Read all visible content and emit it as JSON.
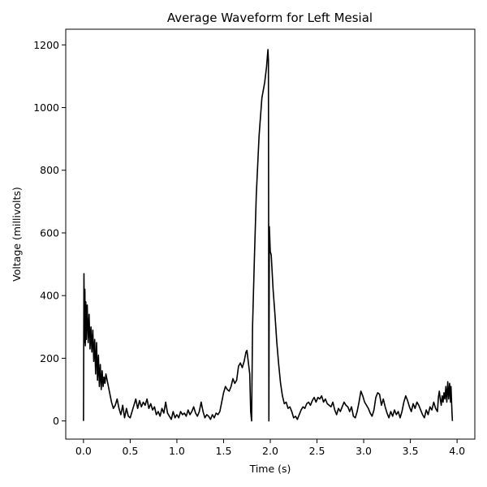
{
  "chart_data": {
    "type": "line",
    "title": "Average Waveform for Left Mesial",
    "xlabel": "Time (s)",
    "ylabel": "Voltage (millivolts)",
    "xlim": [
      -0.19,
      4.19
    ],
    "ylim": [
      -58,
      1250
    ],
    "xticks": [
      0.0,
      0.5,
      1.0,
      1.5,
      2.0,
      2.5,
      3.0,
      3.5,
      4.0
    ],
    "xtick_labels": [
      "0.0",
      "0.5",
      "1.0",
      "1.5",
      "2.0",
      "2.5",
      "3.0",
      "3.5",
      "4.0"
    ],
    "yticks": [
      0,
      200,
      400,
      600,
      800,
      1000,
      1200
    ],
    "ytick_labels": [
      "0",
      "200",
      "400",
      "600",
      "800",
      "1000",
      "1200"
    ],
    "grid": false,
    "line_color": "#000000",
    "series": [
      {
        "points": [
          [
            0.0,
            0
          ],
          [
            0.005,
            470
          ],
          [
            0.01,
            250
          ],
          [
            0.015,
            420
          ],
          [
            0.02,
            240
          ],
          [
            0.025,
            380
          ],
          [
            0.03,
            260
          ],
          [
            0.04,
            370
          ],
          [
            0.05,
            250
          ],
          [
            0.06,
            340
          ],
          [
            0.07,
            230
          ],
          [
            0.08,
            300
          ],
          [
            0.09,
            220
          ],
          [
            0.1,
            290
          ],
          [
            0.11,
            190
          ],
          [
            0.12,
            260
          ],
          [
            0.13,
            150
          ],
          [
            0.14,
            250
          ],
          [
            0.15,
            130
          ],
          [
            0.16,
            210
          ],
          [
            0.17,
            110
          ],
          [
            0.18,
            180
          ],
          [
            0.19,
            100
          ],
          [
            0.2,
            160
          ],
          [
            0.21,
            110
          ],
          [
            0.22,
            140
          ],
          [
            0.23,
            120
          ],
          [
            0.24,
            150
          ],
          [
            0.26,
            120
          ],
          [
            0.28,
            90
          ],
          [
            0.3,
            60
          ],
          [
            0.32,
            40
          ],
          [
            0.34,
            50
          ],
          [
            0.36,
            70
          ],
          [
            0.38,
            40
          ],
          [
            0.4,
            20
          ],
          [
            0.42,
            50
          ],
          [
            0.44,
            10
          ],
          [
            0.46,
            40
          ],
          [
            0.48,
            15
          ],
          [
            0.5,
            10
          ],
          [
            0.52,
            30
          ],
          [
            0.54,
            50
          ],
          [
            0.56,
            70
          ],
          [
            0.58,
            40
          ],
          [
            0.6,
            65
          ],
          [
            0.62,
            45
          ],
          [
            0.64,
            60
          ],
          [
            0.66,
            50
          ],
          [
            0.68,
            70
          ],
          [
            0.7,
            40
          ],
          [
            0.72,
            55
          ],
          [
            0.74,
            35
          ],
          [
            0.76,
            45
          ],
          [
            0.78,
            20
          ],
          [
            0.8,
            30
          ],
          [
            0.82,
            15
          ],
          [
            0.84,
            40
          ],
          [
            0.86,
            25
          ],
          [
            0.88,
            60
          ],
          [
            0.9,
            25
          ],
          [
            0.92,
            15
          ],
          [
            0.94,
            5
          ],
          [
            0.96,
            30
          ],
          [
            0.98,
            10
          ],
          [
            1.0,
            20
          ],
          [
            1.02,
            10
          ],
          [
            1.04,
            30
          ],
          [
            1.06,
            20
          ],
          [
            1.08,
            25
          ],
          [
            1.1,
            15
          ],
          [
            1.12,
            35
          ],
          [
            1.14,
            20
          ],
          [
            1.16,
            30
          ],
          [
            1.18,
            45
          ],
          [
            1.2,
            25
          ],
          [
            1.22,
            15
          ],
          [
            1.24,
            30
          ],
          [
            1.26,
            60
          ],
          [
            1.28,
            30
          ],
          [
            1.3,
            10
          ],
          [
            1.32,
            20
          ],
          [
            1.34,
            15
          ],
          [
            1.36,
            5
          ],
          [
            1.38,
            20
          ],
          [
            1.4,
            10
          ],
          [
            1.42,
            25
          ],
          [
            1.44,
            20
          ],
          [
            1.46,
            30
          ],
          [
            1.48,
            60
          ],
          [
            1.5,
            90
          ],
          [
            1.52,
            110
          ],
          [
            1.54,
            100
          ],
          [
            1.56,
            95
          ],
          [
            1.58,
            110
          ],
          [
            1.6,
            135
          ],
          [
            1.62,
            120
          ],
          [
            1.64,
            130
          ],
          [
            1.66,
            175
          ],
          [
            1.68,
            185
          ],
          [
            1.7,
            170
          ],
          [
            1.72,
            190
          ],
          [
            1.74,
            220
          ],
          [
            1.75,
            225
          ],
          [
            1.76,
            200
          ],
          [
            1.78,
            150
          ],
          [
            1.79,
            30
          ],
          [
            1.8,
            0
          ],
          [
            1.81,
            300
          ],
          [
            1.83,
            520
          ],
          [
            1.85,
            720
          ],
          [
            1.88,
            910
          ],
          [
            1.91,
            1030
          ],
          [
            1.94,
            1080
          ],
          [
            1.96,
            1130
          ],
          [
            1.975,
            1185
          ],
          [
            1.98,
            1150
          ],
          [
            1.985,
            0
          ],
          [
            1.99,
            620
          ],
          [
            2.0,
            540
          ],
          [
            2.01,
            530
          ],
          [
            2.03,
            420
          ],
          [
            2.05,
            340
          ],
          [
            2.07,
            250
          ],
          [
            2.09,
            180
          ],
          [
            2.11,
            120
          ],
          [
            2.13,
            80
          ],
          [
            2.15,
            55
          ],
          [
            2.17,
            60
          ],
          [
            2.19,
            40
          ],
          [
            2.21,
            45
          ],
          [
            2.23,
            30
          ],
          [
            2.25,
            10
          ],
          [
            2.27,
            15
          ],
          [
            2.29,
            5
          ],
          [
            2.31,
            20
          ],
          [
            2.33,
            35
          ],
          [
            2.35,
            45
          ],
          [
            2.37,
            40
          ],
          [
            2.39,
            55
          ],
          [
            2.41,
            60
          ],
          [
            2.43,
            50
          ],
          [
            2.45,
            65
          ],
          [
            2.47,
            75
          ],
          [
            2.49,
            60
          ],
          [
            2.51,
            75
          ],
          [
            2.53,
            70
          ],
          [
            2.55,
            80
          ],
          [
            2.57,
            60
          ],
          [
            2.59,
            70
          ],
          [
            2.61,
            55
          ],
          [
            2.63,
            50
          ],
          [
            2.65,
            45
          ],
          [
            2.67,
            60
          ],
          [
            2.69,
            35
          ],
          [
            2.71,
            20
          ],
          [
            2.73,
            40
          ],
          [
            2.75,
            30
          ],
          [
            2.77,
            45
          ],
          [
            2.79,
            60
          ],
          [
            2.81,
            50
          ],
          [
            2.83,
            45
          ],
          [
            2.85,
            30
          ],
          [
            2.87,
            45
          ],
          [
            2.89,
            15
          ],
          [
            2.91,
            10
          ],
          [
            2.93,
            30
          ],
          [
            2.95,
            60
          ],
          [
            2.97,
            95
          ],
          [
            2.99,
            80
          ],
          [
            3.01,
            60
          ],
          [
            3.03,
            50
          ],
          [
            3.05,
            40
          ],
          [
            3.07,
            25
          ],
          [
            3.09,
            15
          ],
          [
            3.11,
            35
          ],
          [
            3.13,
            75
          ],
          [
            3.15,
            90
          ],
          [
            3.17,
            85
          ],
          [
            3.19,
            50
          ],
          [
            3.21,
            70
          ],
          [
            3.23,
            45
          ],
          [
            3.25,
            25
          ],
          [
            3.27,
            10
          ],
          [
            3.29,
            30
          ],
          [
            3.31,
            15
          ],
          [
            3.33,
            35
          ],
          [
            3.35,
            20
          ],
          [
            3.37,
            30
          ],
          [
            3.39,
            10
          ],
          [
            3.41,
            30
          ],
          [
            3.43,
            60
          ],
          [
            3.45,
            80
          ],
          [
            3.47,
            65
          ],
          [
            3.49,
            45
          ],
          [
            3.51,
            30
          ],
          [
            3.53,
            55
          ],
          [
            3.55,
            40
          ],
          [
            3.57,
            60
          ],
          [
            3.59,
            50
          ],
          [
            3.61,
            35
          ],
          [
            3.63,
            20
          ],
          [
            3.65,
            10
          ],
          [
            3.67,
            35
          ],
          [
            3.69,
            20
          ],
          [
            3.71,
            45
          ],
          [
            3.73,
            35
          ],
          [
            3.75,
            60
          ],
          [
            3.77,
            40
          ],
          [
            3.79,
            30
          ],
          [
            3.8,
            75
          ],
          [
            3.81,
            95
          ],
          [
            3.82,
            70
          ],
          [
            3.83,
            50
          ],
          [
            3.84,
            80
          ],
          [
            3.85,
            60
          ],
          [
            3.86,
            90
          ],
          [
            3.87,
            70
          ],
          [
            3.88,
            110
          ],
          [
            3.89,
            60
          ],
          [
            3.9,
            125
          ],
          [
            3.91,
            70
          ],
          [
            3.92,
            120
          ],
          [
            3.93,
            60
          ],
          [
            3.935,
            110
          ],
          [
            3.945,
            30
          ],
          [
            3.95,
            0
          ]
        ]
      }
    ]
  }
}
